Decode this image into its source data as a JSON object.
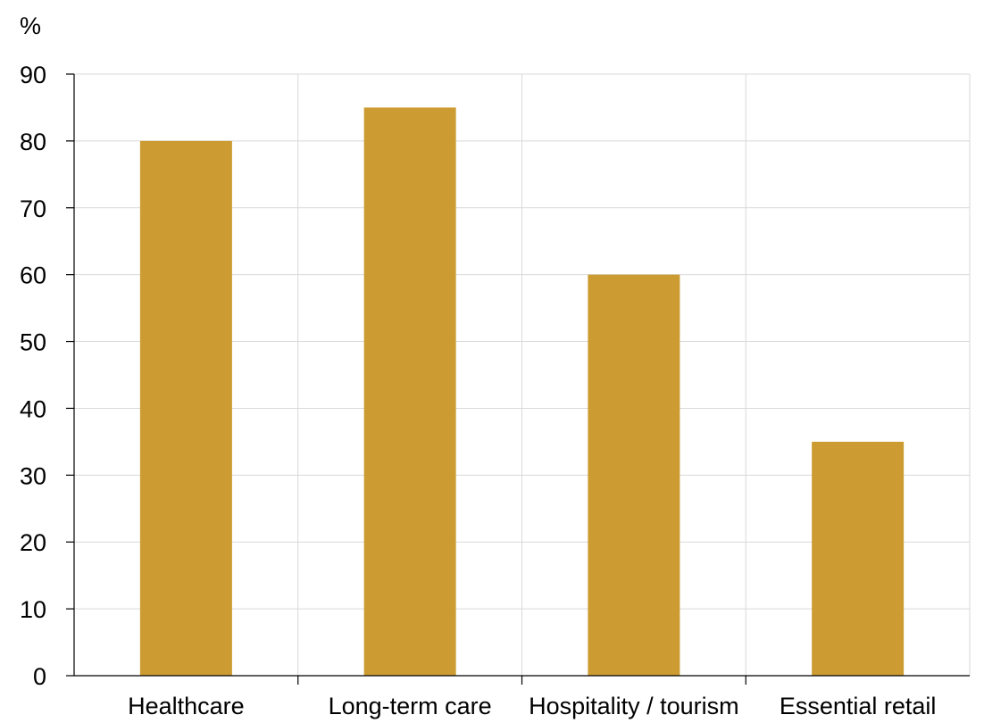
{
  "chart_data": {
    "type": "bar",
    "unit_label": "%",
    "categories": [
      "Healthcare",
      "Long-term care",
      "Hospitality / tourism",
      "Essential retail"
    ],
    "values": [
      80,
      85,
      60,
      35
    ],
    "ylim": [
      0,
      90
    ],
    "yticks": [
      0,
      10,
      20,
      30,
      40,
      50,
      60,
      70,
      80,
      90
    ],
    "grid": true,
    "legend": "none",
    "colors": {
      "bar": "#CC9C33",
      "grid": "#D9D9D9",
      "axis": "#000000"
    }
  }
}
